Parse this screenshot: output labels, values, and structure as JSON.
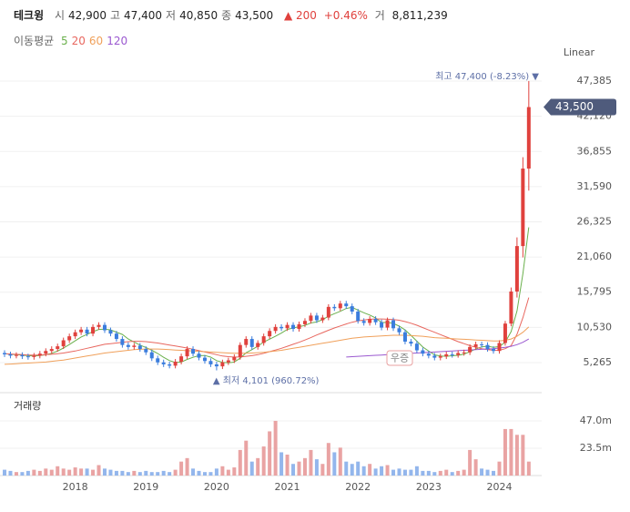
{
  "header": {
    "name": "테크윙",
    "fields": [
      {
        "label": "시",
        "value": "42,900"
      },
      {
        "label": "고",
        "value": "47,400"
      },
      {
        "label": "저",
        "value": "40,850"
      },
      {
        "label": "종",
        "value": "43,500"
      }
    ],
    "change": "▲ 200",
    "change_pct": "+0.46%",
    "volume_label": "거",
    "volume": "8,811,239"
  },
  "chart_data": {
    "type": "candlestick",
    "scale_label": "Linear",
    "ma_legend_title": "이동평균",
    "volume_title": "거래량",
    "high_annotation": "최고 47,400 (-8.23%) ▼",
    "low_annotation": "▲ 최저 4,101 (960.72%)",
    "event_marker": "우증",
    "price_tag": {
      "value": 43500,
      "label": "43,500"
    },
    "up_color": "#e0413d",
    "down_color": "#3b7ddd",
    "volume_up_color": "#e9a3a3",
    "volume_down_color": "#93b6ec",
    "grid": true,
    "categories": [
      null,
      null,
      null,
      null,
      null,
      null,
      null,
      null,
      null,
      null,
      null,
      null,
      "2018",
      null,
      null,
      null,
      null,
      null,
      null,
      null,
      null,
      null,
      null,
      null,
      "2019",
      null,
      null,
      null,
      null,
      null,
      null,
      null,
      null,
      null,
      null,
      null,
      "2020",
      null,
      null,
      null,
      null,
      null,
      null,
      null,
      null,
      null,
      null,
      null,
      "2021",
      null,
      null,
      null,
      null,
      null,
      null,
      null,
      null,
      null,
      null,
      null,
      "2022",
      null,
      null,
      null,
      null,
      null,
      null,
      null,
      null,
      null,
      null,
      null,
      "2023",
      null,
      null,
      null,
      null,
      null,
      null,
      null,
      null,
      null,
      null,
      null,
      "2024",
      null,
      null,
      null,
      null,
      null
    ],
    "open": [
      6700,
      6500,
      6300,
      6400,
      6200,
      6100,
      6300,
      6600,
      7000,
      7300,
      7700,
      8600,
      9200,
      9800,
      10200,
      9600,
      10600,
      10900,
      10100,
      9600,
      8800,
      7900,
      7600,
      7800,
      7300,
      6800,
      5900,
      5300,
      5000,
      4800,
      5400,
      6200,
      7300,
      6600,
      6000,
      5500,
      5000,
      4700,
      5300,
      5600,
      6100,
      7900,
      8800,
      7600,
      8200,
      9200,
      10000,
      10600,
      10400,
      10900,
      10300,
      11000,
      11500,
      12300,
      11600,
      12000,
      13600,
      13400,
      14100,
      13700,
      12900,
      11500,
      11200,
      11800,
      11300,
      10500,
      11600,
      10400,
      9800,
      8400,
      8100,
      7100,
      6600,
      6300,
      6000,
      6200,
      6500,
      6400,
      6700,
      6800,
      7600,
      8000,
      7900,
      7300,
      7000,
      8200,
      11100,
      15900,
      22700,
      34300
    ],
    "high": [
      7100,
      6900,
      6800,
      6800,
      6600,
      6700,
      7000,
      7400,
      7700,
      8100,
      9000,
      9600,
      10200,
      10600,
      10600,
      11000,
      11300,
      11300,
      10500,
      10000,
      9200,
      8300,
      8200,
      8200,
      7700,
      7200,
      6300,
      5700,
      5400,
      5800,
      6600,
      7700,
      7700,
      7000,
      6400,
      5900,
      5400,
      5700,
      6000,
      6500,
      8300,
      9200,
      9200,
      8600,
      9600,
      10400,
      11000,
      11000,
      11300,
      11300,
      11400,
      11900,
      12700,
      12700,
      12400,
      14000,
      14000,
      14500,
      14500,
      14100,
      13300,
      11900,
      12200,
      12200,
      11700,
      12000,
      12000,
      10800,
      10200,
      8800,
      8500,
      7500,
      7000,
      6700,
      6600,
      6900,
      6900,
      7100,
      7200,
      8000,
      8400,
      8400,
      8300,
      7700,
      8600,
      11500,
      16500,
      24000,
      36000,
      47400
    ],
    "low": [
      6100,
      5900,
      5900,
      5800,
      5700,
      5700,
      5900,
      6200,
      6600,
      6900,
      7300,
      8200,
      8800,
      9400,
      9200,
      9200,
      10200,
      9700,
      9200,
      8400,
      7500,
      7200,
      7200,
      6900,
      6400,
      5500,
      4900,
      4600,
      4400,
      4400,
      5000,
      5800,
      6200,
      5600,
      5100,
      4600,
      4101,
      4300,
      4900,
      5200,
      5700,
      7500,
      7200,
      7200,
      7800,
      8800,
      9600,
      10000,
      10000,
      9900,
      9900,
      10600,
      11100,
      11200,
      11200,
      11600,
      13000,
      13000,
      13300,
      12500,
      11100,
      10800,
      10800,
      10900,
      10100,
      10100,
      10000,
      9400,
      8000,
      7700,
      6700,
      6200,
      5900,
      5600,
      5600,
      5800,
      6000,
      6000,
      6300,
      6400,
      7200,
      7500,
      6900,
      6600,
      6600,
      7800,
      10700,
      15000,
      21000,
      31000
    ],
    "close": [
      6500,
      6300,
      6400,
      6200,
      6100,
      6300,
      6600,
      7000,
      7300,
      7700,
      8600,
      9200,
      9800,
      10200,
      9600,
      10600,
      10900,
      10100,
      9600,
      8800,
      7900,
      7600,
      7800,
      7300,
      6800,
      5900,
      5300,
      5000,
      4800,
      5400,
      6200,
      7300,
      6600,
      6000,
      5500,
      5000,
      4700,
      5300,
      5600,
      6100,
      7900,
      8800,
      7600,
      8200,
      9200,
      10000,
      10600,
      10400,
      10900,
      10300,
      11000,
      11500,
      12300,
      11600,
      12000,
      13600,
      13400,
      14100,
      13700,
      12900,
      11500,
      11200,
      11800,
      11300,
      10500,
      11600,
      10400,
      9800,
      8400,
      8100,
      7100,
      6600,
      6300,
      6000,
      6200,
      6500,
      6400,
      6700,
      6800,
      7600,
      8000,
      7900,
      7300,
      7000,
      8200,
      11100,
      15900,
      22700,
      34300,
      43500
    ],
    "volume": [
      5,
      4,
      3,
      3,
      4,
      5,
      4,
      6,
      5,
      8,
      6,
      5,
      7,
      6,
      6,
      5,
      9,
      6,
      5,
      4,
      4,
      3,
      4,
      3,
      4,
      3,
      3,
      4,
      3,
      5,
      12,
      15,
      6,
      4,
      3,
      3,
      6,
      8,
      5,
      7,
      22,
      30,
      12,
      15,
      25,
      38,
      47,
      20,
      18,
      10,
      12,
      15,
      22,
      14,
      10,
      28,
      20,
      24,
      12,
      10,
      12,
      8,
      10,
      6,
      8,
      9,
      5,
      6,
      5,
      5,
      8,
      4,
      4,
      3,
      4,
      5,
      3,
      4,
      5,
      22,
      14,
      6,
      5,
      4,
      12,
      40,
      40,
      35,
      35,
      12
    ],
    "moving_averages": [
      {
        "name": "5",
        "color": "#6ab04c",
        "values": [
          6600,
          6500,
          6450,
          6400,
          6300,
          6260,
          6320,
          6440,
          6660,
          6980,
          7440,
          7960,
          8520,
          9100,
          9480,
          9880,
          10220,
          10280,
          10160,
          9820,
          9480,
          8800,
          8340,
          7880,
          7520,
          7100,
          6620,
          6060,
          5560,
          5280,
          5340,
          5740,
          6060,
          6300,
          6320,
          6080,
          5560,
          5300,
          5220,
          5340,
          5920,
          6740,
          7200,
          7720,
          8340,
          8760,
          9200,
          9680,
          10220,
          10440,
          10640,
          10820,
          11200,
          11340,
          11680,
          12200,
          12580,
          12940,
          13360,
          13540,
          13120,
          12720,
          12380,
          11940,
          11260,
          11280,
          11120,
          10720,
          10140,
          9340,
          8460,
          7600,
          7000,
          6420,
          6240,
          6200,
          6280,
          6360,
          6520,
          6900,
          7300,
          7620,
          7720,
          7560,
          7660,
          8300,
          9900,
          13000,
          18600,
          25500
        ]
      },
      {
        "name": "20",
        "color": "#e8675f",
        "values": [
          6600,
          6550,
          6500,
          6450,
          6400,
          6400,
          6400,
          6450,
          6500,
          6600,
          6700,
          6850,
          7000,
          7200,
          7400,
          7600,
          7800,
          8000,
          8100,
          8200,
          8300,
          8400,
          8450,
          8450,
          8400,
          8300,
          8200,
          8050,
          7900,
          7750,
          7600,
          7450,
          7250,
          7050,
          6850,
          6650,
          6450,
          6250,
          6150,
          6100,
          6100,
          6200,
          6300,
          6450,
          6650,
          6900,
          7150,
          7400,
          7700,
          8000,
          8300,
          8650,
          9000,
          9400,
          9750,
          10100,
          10450,
          10750,
          11050,
          11300,
          11500,
          11650,
          11750,
          11800,
          11800,
          11750,
          11700,
          11600,
          11400,
          11150,
          10850,
          10500,
          10150,
          9800,
          9450,
          9100,
          8750,
          8400,
          8100,
          7800,
          7550,
          7350,
          7200,
          7100,
          7100,
          7350,
          7800,
          9500,
          12000,
          15000
        ]
      },
      {
        "name": "60",
        "color": "#f0a05a",
        "values": [
          5000,
          5050,
          5100,
          5150,
          5200,
          5250,
          5300,
          5350,
          5450,
          5550,
          5650,
          5800,
          5950,
          6100,
          6250,
          6400,
          6550,
          6700,
          6800,
          6900,
          7000,
          7100,
          7200,
          7250,
          7300,
          7300,
          7300,
          7250,
          7200,
          7150,
          7100,
          7050,
          7000,
          6950,
          6900,
          6850,
          6800,
          6750,
          6700,
          6650,
          6650,
          6650,
          6700,
          6750,
          6800,
          6900,
          7000,
          7100,
          7250,
          7400,
          7550,
          7700,
          7850,
          8000,
          8150,
          8300,
          8450,
          8600,
          8750,
          8900,
          9000,
          9100,
          9150,
          9200,
          9250,
          9300,
          9350,
          9350,
          9350,
          9300,
          9250,
          9200,
          9100,
          9000,
          8950,
          8900,
          8850,
          8800,
          8750,
          8700,
          8650,
          8600,
          8550,
          8500,
          8500,
          8600,
          8800,
          9200,
          9800,
          10600
        ]
      },
      {
        "name": "120",
        "color": "#9b59d0",
        "values": [
          null,
          null,
          null,
          null,
          null,
          null,
          null,
          null,
          null,
          null,
          null,
          null,
          null,
          null,
          null,
          null,
          null,
          null,
          null,
          null,
          null,
          null,
          null,
          null,
          null,
          null,
          null,
          null,
          null,
          null,
          null,
          null,
          null,
          null,
          null,
          null,
          null,
          null,
          null,
          null,
          null,
          null,
          null,
          null,
          null,
          null,
          null,
          null,
          null,
          null,
          null,
          null,
          null,
          null,
          null,
          null,
          null,
          null,
          6100,
          6150,
          6200,
          6250,
          6300,
          6350,
          6400,
          6450,
          6500,
          6550,
          6600,
          6650,
          6700,
          6750,
          6800,
          6850,
          6900,
          6950,
          7000,
          7050,
          7100,
          7150,
          7200,
          7250,
          7300,
          7350,
          7450,
          7550,
          7700,
          7950,
          8300,
          8800
        ]
      }
    ],
    "ylim": [
      900,
      49300
    ],
    "yticks": [
      {
        "value": 5265,
        "label": "5,265"
      },
      {
        "value": 10530,
        "label": "10,530"
      },
      {
        "value": 15795,
        "label": "15,795"
      },
      {
        "value": 21060,
        "label": "21,060"
      },
      {
        "value": 26325,
        "label": "26,325"
      },
      {
        "value": 31590,
        "label": "31,590"
      },
      {
        "value": 36855,
        "label": "36,855"
      },
      {
        "value": 42120,
        "label": "42,120"
      },
      {
        "value": 47385,
        "label": "47,385"
      }
    ],
    "volume_ylim": [
      0,
      70
    ],
    "volume_yticks": [
      {
        "value": 23.5,
        "label": "23.5m"
      },
      {
        "value": 47,
        "label": "47.0m"
      }
    ]
  }
}
